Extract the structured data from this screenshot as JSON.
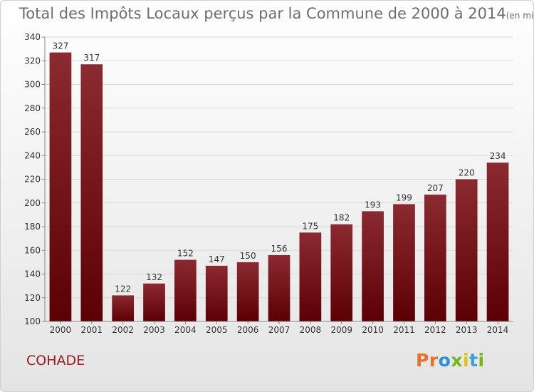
{
  "header": {
    "title": "Total des Impôts Locaux perçus par la Commune de 2000 à 2014",
    "unit": "(en milliers d'€)"
  },
  "footer": {
    "commune": "COHADE",
    "logo_text": "Proxiti",
    "logo_colors": [
      "#e8702a",
      "#e8702a",
      "#2f8fd6",
      "#7ab51d",
      "#e2c21a",
      "#3aa0d8",
      "#7ab51d"
    ]
  },
  "chart_data": {
    "type": "bar",
    "title": "Total des Impôts Locaux perçus par la Commune de 2000 à 2014",
    "categories": [
      "2000",
      "2001",
      "2002",
      "2003",
      "2004",
      "2005",
      "2006",
      "2007",
      "2008",
      "2009",
      "2010",
      "2011",
      "2012",
      "2013",
      "2014"
    ],
    "values": [
      327,
      317,
      122,
      132,
      152,
      147,
      150,
      156,
      175,
      182,
      193,
      199,
      207,
      220,
      234
    ],
    "ylim": [
      100,
      340
    ],
    "yticks": [
      100,
      120,
      140,
      160,
      180,
      200,
      220,
      240,
      260,
      280,
      300,
      320,
      340
    ],
    "grid": true,
    "data_labels": true,
    "bar_color_top": "#8b2a30",
    "bar_color_bottom": "#5c0006"
  }
}
